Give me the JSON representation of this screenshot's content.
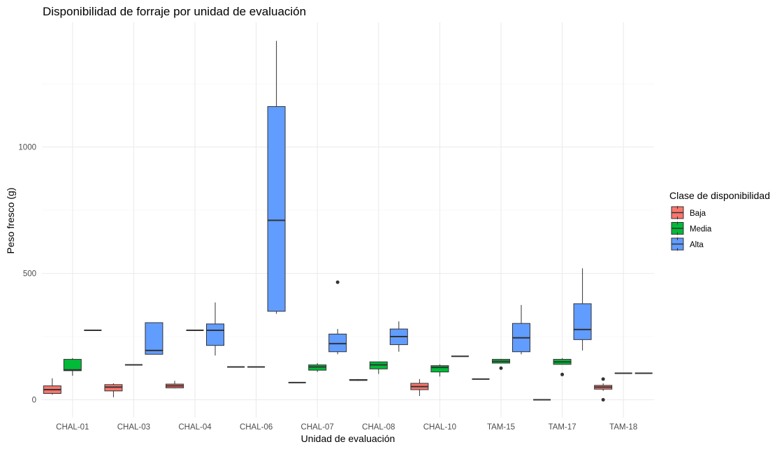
{
  "chart_data": {
    "type": "boxplot",
    "title": "Disponibilidad de forraje por unidad de evaluación",
    "xlabel": "Unidad de evaluación",
    "ylabel": "Peso fresco (g)",
    "ylim": [
      -65,
      1500
    ],
    "yticks": [
      0,
      500,
      1000
    ],
    "grid": true,
    "legend": {
      "title": "Clase de disponibilidad",
      "placement": "right"
    },
    "categories": [
      "CHAL-01",
      "CHAL-03",
      "CHAL-04",
      "CHAL-06",
      "CHAL-07",
      "CHAL-08",
      "CHAL-10",
      "TAM-15",
      "TAM-17",
      "TAM-18"
    ],
    "series": [
      {
        "name": "Baja",
        "color": "#F8766D",
        "boxes": [
          {
            "category": "CHAL-01",
            "whisker_low": 20,
            "q1": 25,
            "median": 40,
            "q3": 55,
            "whisker_high": 85,
            "outliers": []
          },
          {
            "category": "CHAL-03",
            "whisker_low": 10,
            "q1": 35,
            "median": 50,
            "q3": 60,
            "whisker_high": 65,
            "outliers": []
          },
          {
            "category": "CHAL-04",
            "whisker_low": 45,
            "q1": 47,
            "median": 55,
            "q3": 62,
            "whisker_high": 75,
            "outliers": []
          },
          {
            "category": "CHAL-06",
            "whisker_low": 130,
            "q1": 130,
            "median": 130,
            "q3": 130,
            "whisker_high": 130,
            "outliers": []
          },
          {
            "category": "CHAL-07",
            "whisker_low": 68,
            "q1": 68,
            "median": 68,
            "q3": 68,
            "whisker_high": 68,
            "outliers": []
          },
          {
            "category": "CHAL-08",
            "whisker_low": 75,
            "q1": 77,
            "median": 78,
            "q3": 80,
            "whisker_high": 82,
            "outliers": []
          },
          {
            "category": "CHAL-10",
            "whisker_low": 15,
            "q1": 40,
            "median": 52,
            "q3": 65,
            "whisker_high": 82,
            "outliers": []
          },
          {
            "category": "TAM-15",
            "whisker_low": 82,
            "q1": 82,
            "median": 82,
            "q3": 82,
            "whisker_high": 82,
            "outliers": []
          },
          {
            "category": "TAM-17",
            "whisker_low": 0,
            "q1": 0,
            "median": 0,
            "q3": 0,
            "whisker_high": 0,
            "outliers": []
          },
          {
            "category": "TAM-18",
            "whisker_low": 35,
            "q1": 42,
            "median": 50,
            "q3": 57,
            "whisker_high": 65,
            "outliers": [
              0,
              82
            ]
          }
        ]
      },
      {
        "name": "Media",
        "color": "#00BA38",
        "boxes": [
          {
            "category": "CHAL-01",
            "whisker_low": 95,
            "q1": 115,
            "median": 118,
            "q3": 160,
            "whisker_high": 165,
            "outliers": []
          },
          {
            "category": "CHAL-03",
            "whisker_low": 138,
            "q1": 138,
            "median": 138,
            "q3": 138,
            "whisker_high": 138,
            "outliers": []
          },
          {
            "category": "CHAL-04",
            "whisker_low": 275,
            "q1": 275,
            "median": 275,
            "q3": 275,
            "whisker_high": 275,
            "outliers": []
          },
          {
            "category": "CHAL-06",
            "whisker_low": 130,
            "q1": 130,
            "median": 130,
            "q3": 130,
            "whisker_high": 130,
            "outliers": []
          },
          {
            "category": "CHAL-07",
            "whisker_low": 110,
            "q1": 117,
            "median": 130,
            "q3": 138,
            "whisker_high": 145,
            "outliers": []
          },
          {
            "category": "CHAL-08",
            "whisker_low": 102,
            "q1": 122,
            "median": 138,
            "q3": 150,
            "whisker_high": 150,
            "outliers": []
          },
          {
            "category": "CHAL-10",
            "whisker_low": 92,
            "q1": 110,
            "median": 128,
            "q3": 135,
            "whisker_high": 140,
            "outliers": []
          },
          {
            "category": "TAM-15",
            "whisker_low": 145,
            "q1": 145,
            "median": 152,
            "q3": 160,
            "whisker_high": 162,
            "outliers": [
              125
            ]
          },
          {
            "category": "TAM-17",
            "whisker_low": 140,
            "q1": 140,
            "median": 150,
            "q3": 160,
            "whisker_high": 165,
            "outliers": [
              100
            ]
          },
          {
            "category": "TAM-18",
            "whisker_low": 105,
            "q1": 105,
            "median": 105,
            "q3": 105,
            "whisker_high": 105,
            "outliers": []
          }
        ]
      },
      {
        "name": "Alta",
        "color": "#619CFF",
        "boxes": [
          {
            "category": "CHAL-01",
            "whisker_low": 275,
            "q1": 275,
            "median": 275,
            "q3": 275,
            "whisker_high": 275,
            "outliers": []
          },
          {
            "category": "CHAL-03",
            "whisker_low": 180,
            "q1": 180,
            "median": 195,
            "q3": 305,
            "whisker_high": 305,
            "outliers": []
          },
          {
            "category": "CHAL-04",
            "whisker_low": 175,
            "q1": 215,
            "median": 275,
            "q3": 300,
            "whisker_high": 385,
            "outliers": []
          },
          {
            "category": "CHAL-06",
            "whisker_low": 340,
            "q1": 350,
            "median": 710,
            "q3": 1160,
            "whisker_high": 1420,
            "outliers": []
          },
          {
            "category": "CHAL-07",
            "whisker_low": 180,
            "q1": 190,
            "median": 222,
            "q3": 260,
            "whisker_high": 280,
            "outliers": [
              465
            ]
          },
          {
            "category": "CHAL-08",
            "whisker_low": 190,
            "q1": 218,
            "median": 250,
            "q3": 280,
            "whisker_high": 310,
            "outliers": []
          },
          {
            "category": "CHAL-10",
            "whisker_low": 172,
            "q1": 172,
            "median": 172,
            "q3": 172,
            "whisker_high": 172,
            "outliers": []
          },
          {
            "category": "TAM-15",
            "whisker_low": 180,
            "q1": 190,
            "median": 245,
            "q3": 302,
            "whisker_high": 375,
            "outliers": []
          },
          {
            "category": "TAM-17",
            "whisker_low": 195,
            "q1": 238,
            "median": 278,
            "q3": 380,
            "whisker_high": 520,
            "outliers": []
          },
          {
            "category": "TAM-18",
            "whisker_low": 105,
            "q1": 105,
            "median": 105,
            "q3": 105,
            "whisker_high": 105,
            "outliers": []
          }
        ]
      }
    ]
  }
}
